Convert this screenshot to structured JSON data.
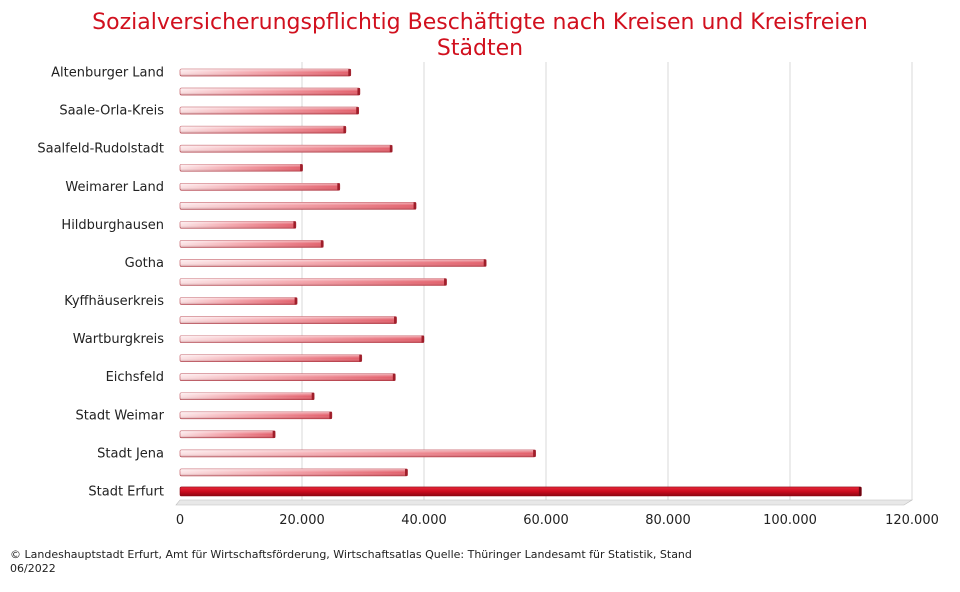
{
  "chart_data": {
    "type": "bar",
    "orientation": "horizontal",
    "title": "Sozialversicherungspflichtig Beschäftigte nach Kreisen und Kreisfreien Städten",
    "xlabel": "",
    "ylabel": "",
    "xlim": [
      0,
      120000
    ],
    "x_ticks": [
      "0",
      "20.000",
      "40.000",
      "60.000",
      "80.000",
      "100.000",
      "120.000"
    ],
    "grid": "vertical",
    "legend": "none",
    "categories": [
      "Altenburger Land",
      "",
      "Saale-Orla-Kreis",
      "",
      "Saalfeld-Rudolstadt",
      "",
      "Weimarer Land",
      "",
      "Hildburghausen",
      "",
      "Gotha",
      "",
      "Kyffhäuserkreis",
      "",
      "Wartburgkreis",
      "",
      "Eichsfeld",
      "",
      "Stadt Weimar",
      "",
      "Stadt Jena",
      "",
      "Stadt Erfurt"
    ],
    "values": [
      28000,
      29500,
      29300,
      27200,
      34800,
      20100,
      26200,
      38700,
      19000,
      23500,
      50200,
      43700,
      19200,
      35500,
      40000,
      29800,
      35300,
      22000,
      24900,
      15600,
      58300,
      37300,
      111700
    ],
    "highlight_index": 22,
    "bar_color": "#e8707a",
    "highlight_color": "#cc0b1e",
    "title_color": "#d1101e"
  },
  "source_text": "© Landeshauptstadt Erfurt, Amt für Wirtschaftsförderung, Wirtschaftsatlas Quelle: Thüringer Landesamt für Statistik, Stand 06/2022"
}
